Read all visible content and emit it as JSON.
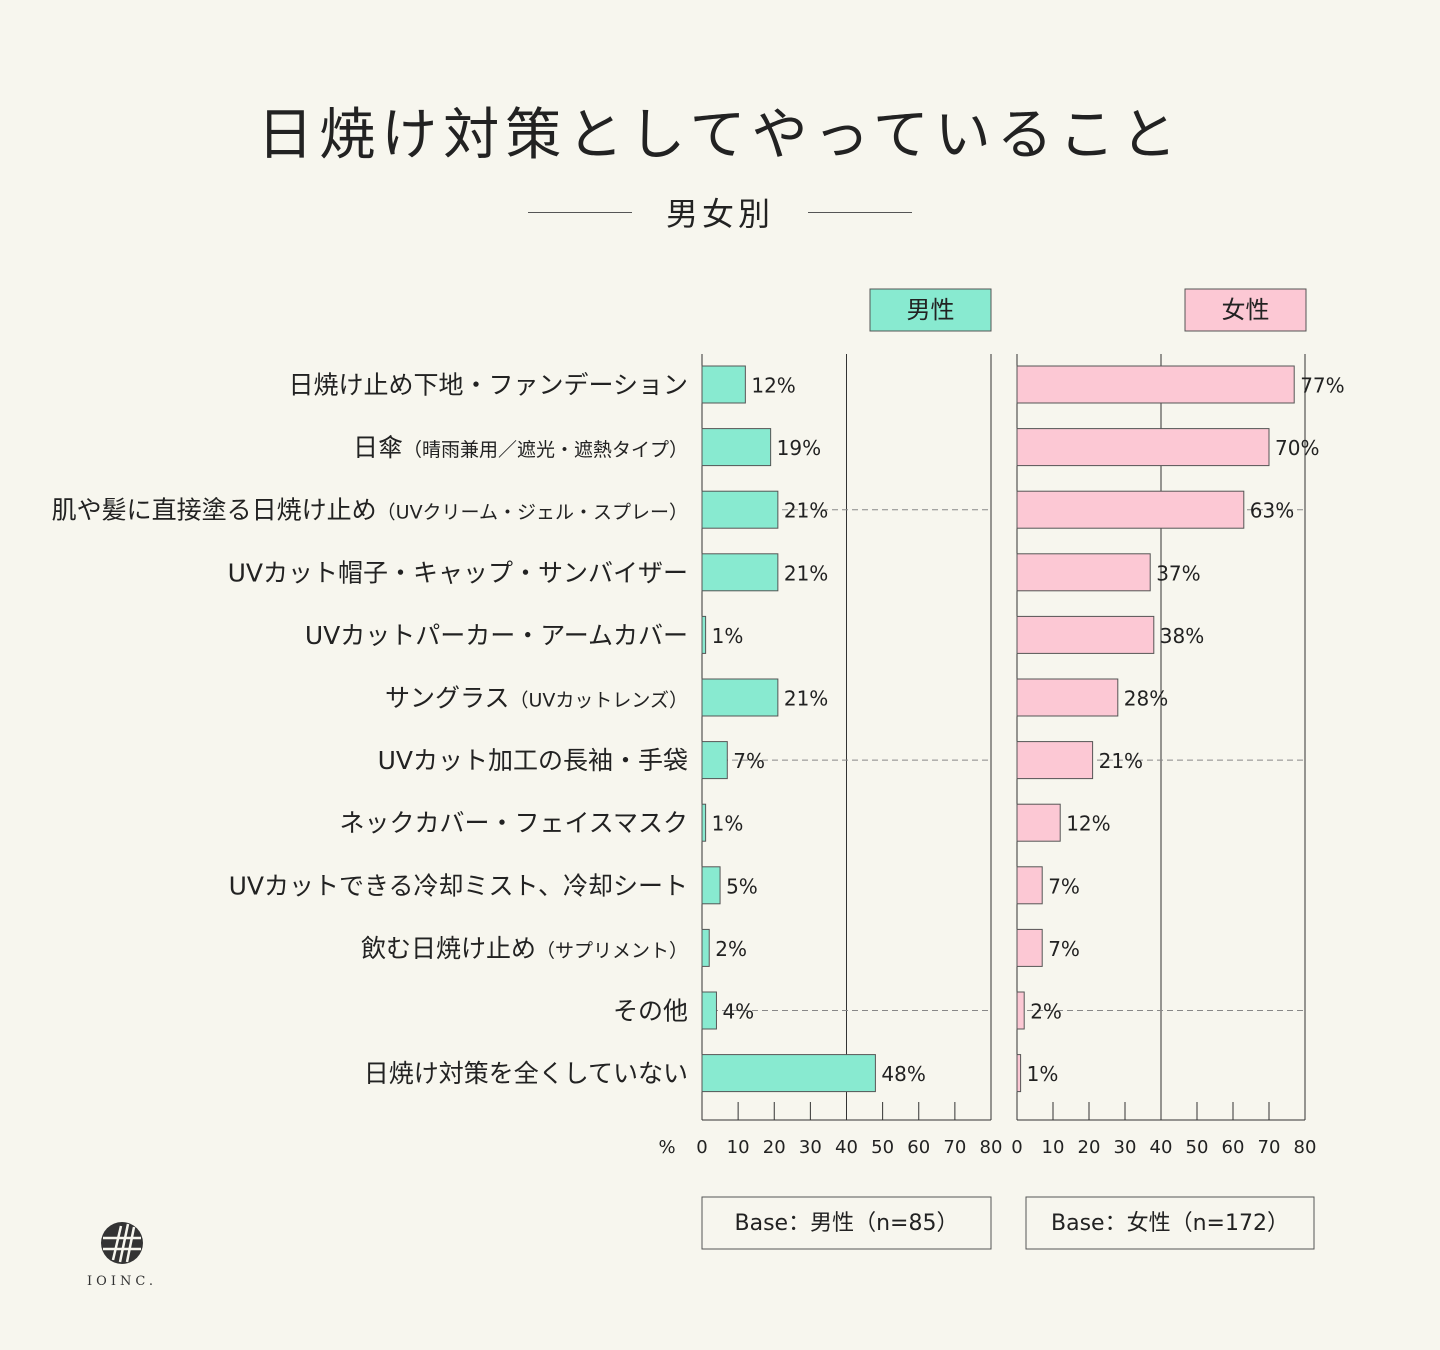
{
  "title": "日焼け対策としてやっていること",
  "subtitle": "男女別",
  "colors": {
    "male": "#88ead0",
    "female": "#fcc8d4",
    "background": "#f7f6ee"
  },
  "logo": {
    "text": "IOINC."
  },
  "chart_data": {
    "type": "bar",
    "orientation": "horizontal",
    "unit_label": "%",
    "xlim": [
      0,
      80
    ],
    "ticks": [
      0,
      10,
      20,
      30,
      40,
      50,
      60,
      70,
      80
    ],
    "categories": [
      {
        "main": "日焼け止め下地・ファンデーション",
        "sub": ""
      },
      {
        "main": "日傘",
        "sub": "（晴雨兼用／遮光・遮熱タイプ）"
      },
      {
        "main": "肌や髪に直接塗る日焼け止め",
        "sub": "（UVクリーム・ジェル・スプレー）"
      },
      {
        "main": "UVカット帽子・キャップ・サンバイザー",
        "sub": ""
      },
      {
        "main": "UVカットパーカー・アームカバー",
        "sub": ""
      },
      {
        "main": "サングラス",
        "sub": "（UVカットレンズ）"
      },
      {
        "main": "UVカット加工の長袖・手袋",
        "sub": ""
      },
      {
        "main": "ネックカバー・フェイスマスク",
        "sub": ""
      },
      {
        "main": "UVカットできる冷却ミスト、冷却シート",
        "sub": ""
      },
      {
        "main": "飲む日焼け止め",
        "sub": "（サプリメント）"
      },
      {
        "main": "その他",
        "sub": ""
      },
      {
        "main": "日焼け対策を全くしていない",
        "sub": ""
      }
    ],
    "series": [
      {
        "name": "男性",
        "base": "Base：男性（n=85）",
        "values": [
          12,
          19,
          21,
          21,
          1,
          21,
          7,
          1,
          5,
          2,
          4,
          48
        ]
      },
      {
        "name": "女性",
        "base": "Base：女性（n=172）",
        "values": [
          77,
          70,
          63,
          37,
          38,
          28,
          21,
          12,
          7,
          7,
          2,
          1
        ]
      }
    ],
    "value_suffix": "%"
  }
}
